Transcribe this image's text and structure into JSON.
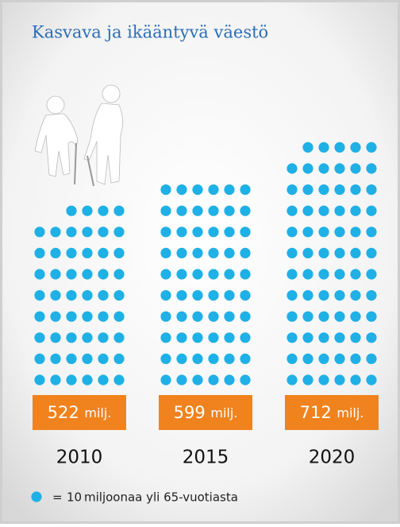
{
  "chart_data": {
    "type": "pictogram",
    "title": "Kasvava ja ikääntyvä väestö",
    "categories": [
      "2010",
      "2015",
      "2020"
    ],
    "values": [
      522,
      599,
      712
    ],
    "unit_label": "milj.",
    "color": "#1fb0e6",
    "label_color": "#f0831e",
    "legend": {
      "symbol": "=",
      "value": 10,
      "label": "miljoonaa yli 65-vuotiasta"
    }
  }
}
